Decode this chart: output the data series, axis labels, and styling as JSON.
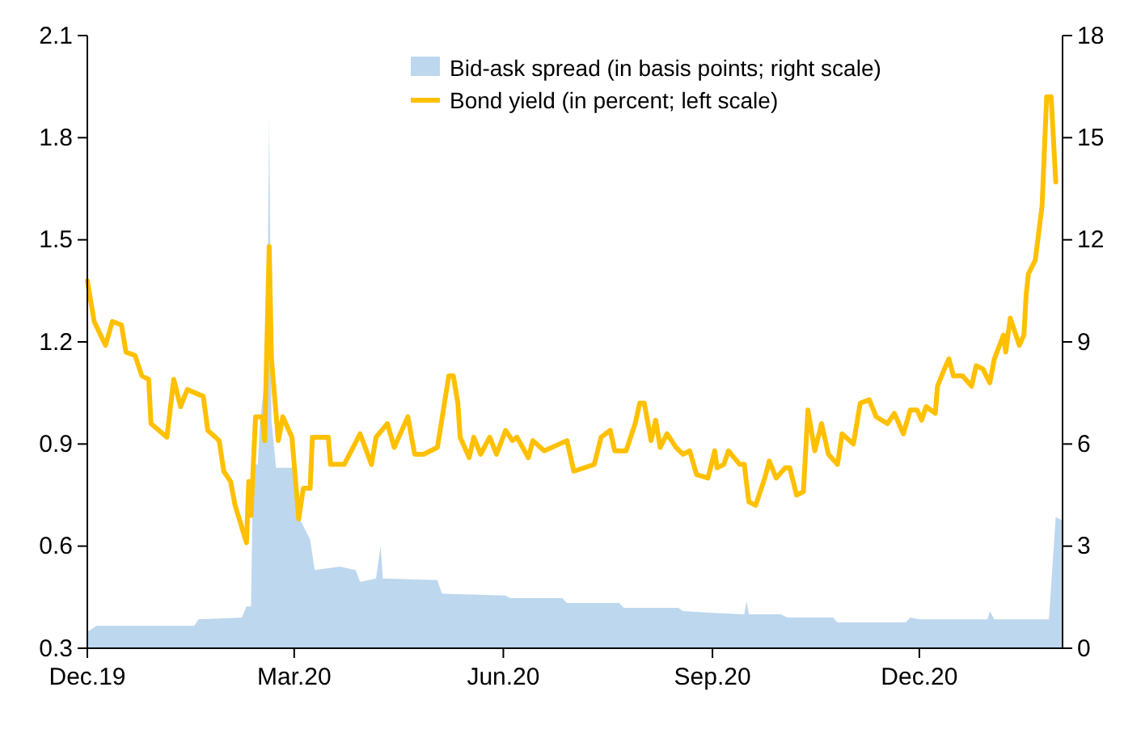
{
  "chart_data": {
    "type": "line",
    "xlim": [
      "2019-12-01",
      "2021-02-02"
    ],
    "xticks": [
      {
        "value": "2019-12-01",
        "label": "Dec.19"
      },
      {
        "value": "2020-03-01",
        "label": "Mar.20"
      },
      {
        "value": "2020-06-01",
        "label": "Jun.20"
      },
      {
        "value": "2020-09-01",
        "label": "Sep.20"
      },
      {
        "value": "2020-12-01",
        "label": "Dec.20"
      }
    ],
    "ylim": [
      0.3,
      2.1
    ],
    "yticks": [
      0.3,
      0.6,
      0.9,
      1.2,
      1.5,
      1.8,
      2.1
    ],
    "y2lim": [
      0,
      18
    ],
    "y2ticks": [
      0,
      3,
      6,
      9,
      12,
      15,
      18
    ],
    "legend": "top right",
    "grid": false,
    "series": [
      {
        "name": "Bid-ask spread (in basis points; right scale)",
        "type": "area",
        "axis": "y2",
        "color": "#bdd7ee",
        "x": [
          "2019-12-01",
          "2019-12-02",
          "2019-12-05",
          "2020-01-17",
          "2020-01-19",
          "2020-02-07",
          "2020-02-09",
          "2020-02-11",
          "2020-02-12",
          "2020-02-14",
          "2020-02-15",
          "2020-02-18",
          "2020-02-19",
          "2020-02-20",
          "2020-02-22",
          "2020-03-02",
          "2020-03-03",
          "2020-03-08",
          "2020-03-10",
          "2020-03-21",
          "2020-03-28",
          "2020-03-30",
          "2020-04-06",
          "2020-04-08",
          "2020-04-09",
          "2020-05-03",
          "2020-05-05",
          "2020-06-02",
          "2020-06-04",
          "2020-06-27",
          "2020-06-29",
          "2020-07-22",
          "2020-07-24",
          "2020-08-17",
          "2020-08-19",
          "2020-09-01",
          "2020-09-15",
          "2020-09-16",
          "2020-09-17",
          "2020-10-01",
          "2020-10-04",
          "2020-10-24",
          "2020-10-26",
          "2020-11-25",
          "2020-11-27",
          "2020-12-01",
          "2020-12-31",
          "2021-01-01",
          "2021-01-03",
          "2021-01-27",
          "2021-01-30",
          "2021-02-02"
        ],
        "values": [
          0.5,
          0.52,
          0.66,
          0.66,
          0.85,
          0.9,
          1.23,
          1.23,
          5.4,
          5.4,
          6.7,
          8.4,
          15.6,
          6.7,
          5.3,
          5.3,
          3.85,
          3.2,
          2.3,
          2.4,
          2.3,
          1.95,
          2.05,
          3.0,
          2.05,
          2.0,
          1.6,
          1.55,
          1.47,
          1.47,
          1.33,
          1.33,
          1.19,
          1.19,
          1.09,
          1.04,
          1.0,
          1.38,
          1.0,
          1.0,
          0.9,
          0.9,
          0.76,
          0.76,
          0.9,
          0.85,
          0.85,
          1.09,
          0.85,
          0.85,
          3.85,
          3.75
        ]
      },
      {
        "name": "Bond yield (in percent; left scale)",
        "color": "#ffc000",
        "x": [
          "2019-12-01",
          "2019-12-04",
          "2019-12-09",
          "2019-12-12",
          "2019-12-16",
          "2019-12-18",
          "2019-12-22",
          "2019-12-25",
          "2019-12-28",
          "2019-12-29",
          "2020-01-05",
          "2020-01-08",
          "2020-01-11",
          "2020-01-14",
          "2020-01-21",
          "2020-01-23",
          "2020-01-28",
          "2020-01-30",
          "2020-02-02",
          "2020-02-04",
          "2020-02-09",
          "2020-02-10",
          "2020-02-11",
          "2020-02-13",
          "2020-02-16",
          "2020-02-17",
          "2020-02-19",
          "2020-02-20",
          "2020-02-23",
          "2020-02-25",
          "2020-02-29",
          "2020-03-03",
          "2020-03-05",
          "2020-03-08",
          "2020-03-09",
          "2020-03-16",
          "2020-03-17",
          "2020-03-23",
          "2020-03-30",
          "2020-04-04",
          "2020-04-06",
          "2020-04-11",
          "2020-04-14",
          "2020-04-20",
          "2020-04-23",
          "2020-04-27",
          "2020-05-03",
          "2020-05-08",
          "2020-05-10",
          "2020-05-12",
          "2020-05-13",
          "2020-05-17",
          "2020-05-19",
          "2020-05-22",
          "2020-05-26",
          "2020-05-29",
          "2020-06-02",
          "2020-06-05",
          "2020-06-07",
          "2020-06-12",
          "2020-06-14",
          "2020-06-19",
          "2020-06-29",
          "2020-07-02",
          "2020-07-11",
          "2020-07-14",
          "2020-07-18",
          "2020-07-20",
          "2020-07-25",
          "2020-07-29",
          "2020-07-31",
          "2020-08-02",
          "2020-08-05",
          "2020-08-07",
          "2020-08-09",
          "2020-08-12",
          "2020-08-14",
          "2020-08-16",
          "2020-08-19",
          "2020-08-22",
          "2020-08-25",
          "2020-08-30",
          "2020-09-02",
          "2020-09-03",
          "2020-09-06",
          "2020-09-08",
          "2020-09-13",
          "2020-09-15",
          "2020-09-17",
          "2020-09-20",
          "2020-09-24",
          "2020-09-26",
          "2020-09-29",
          "2020-10-03",
          "2020-10-05",
          "2020-10-08",
          "2020-10-11",
          "2020-10-13",
          "2020-10-16",
          "2020-10-19",
          "2020-10-22",
          "2020-10-26",
          "2020-10-28",
          "2020-11-02",
          "2020-11-05",
          "2020-11-09",
          "2020-11-12",
          "2020-11-17",
          "2020-11-20",
          "2020-11-24",
          "2020-11-27",
          "2020-11-30",
          "2020-12-02",
          "2020-12-04",
          "2020-12-08",
          "2020-12-09",
          "2020-12-12",
          "2020-12-14",
          "2020-12-16",
          "2020-12-20",
          "2020-12-24",
          "2020-12-26",
          "2020-12-29",
          "2021-01-01",
          "2021-01-03",
          "2021-01-07",
          "2021-01-08",
          "2021-01-10",
          "2021-01-14",
          "2021-01-16",
          "2021-01-17",
          "2021-01-18",
          "2021-01-21",
          "2021-01-24",
          "2021-01-26",
          "2021-01-28",
          "2021-01-30"
        ],
        "values": [
          1.38,
          1.26,
          1.19,
          1.26,
          1.25,
          1.17,
          1.16,
          1.1,
          1.09,
          0.96,
          0.92,
          1.09,
          1.01,
          1.06,
          1.04,
          0.94,
          0.91,
          0.82,
          0.79,
          0.72,
          0.61,
          0.79,
          0.69,
          0.98,
          0.98,
          0.91,
          1.48,
          1.15,
          0.91,
          0.98,
          0.92,
          0.68,
          0.77,
          0.77,
          0.92,
          0.92,
          0.84,
          0.84,
          0.93,
          0.84,
          0.92,
          0.96,
          0.89,
          0.98,
          0.87,
          0.87,
          0.89,
          1.1,
          1.1,
          1.02,
          0.92,
          0.86,
          0.92,
          0.87,
          0.92,
          0.87,
          0.94,
          0.91,
          0.92,
          0.86,
          0.91,
          0.88,
          0.91,
          0.82,
          0.84,
          0.92,
          0.94,
          0.88,
          0.88,
          0.96,
          1.02,
          1.02,
          0.91,
          0.97,
          0.89,
          0.93,
          0.91,
          0.89,
          0.87,
          0.88,
          0.81,
          0.8,
          0.88,
          0.83,
          0.84,
          0.88,
          0.84,
          0.84,
          0.73,
          0.72,
          0.8,
          0.85,
          0.8,
          0.83,
          0.83,
          0.75,
          0.76,
          1.0,
          0.88,
          0.96,
          0.87,
          0.84,
          0.93,
          0.9,
          1.02,
          1.03,
          0.98,
          0.96,
          0.99,
          0.93,
          1.0,
          1.0,
          0.97,
          1.01,
          0.99,
          1.07,
          1.12,
          1.15,
          1.1,
          1.1,
          1.07,
          1.13,
          1.12,
          1.08,
          1.15,
          1.22,
          1.17,
          1.27,
          1.19,
          1.22,
          1.34,
          1.4,
          1.44,
          1.6,
          1.92,
          1.92,
          1.67
        ]
      }
    ]
  }
}
